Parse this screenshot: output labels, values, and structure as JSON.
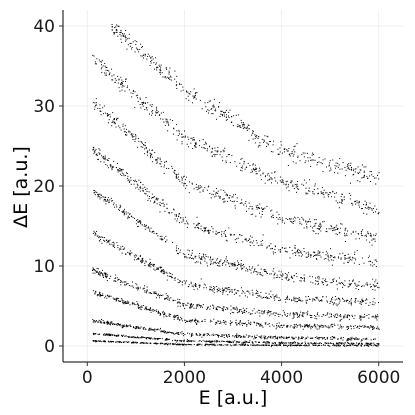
{
  "chart_data": {
    "type": "scatter",
    "title": "",
    "xlabel": "E [a.u.]",
    "ylabel": "ΔE [a.u.]",
    "xlim": [
      -500,
      6500
    ],
    "ylim": [
      -2,
      42
    ],
    "xticks": [
      0,
      2000,
      4000,
      6000
    ],
    "xtick_labels": [
      "0",
      "2000",
      "4000",
      "6000"
    ],
    "yticks": [
      0,
      10,
      20,
      30,
      40
    ],
    "ytick_labels": [
      "0",
      "10",
      "20",
      "30",
      "40"
    ],
    "grid": true,
    "legend": "none",
    "marker_color": "#000000",
    "model": "bands of ΔE falling as a/(E+b)",
    "series": [
      {
        "x": [
          100,
          2000,
          4000,
          6000
        ],
        "y": [
          0.7,
          0.25,
          0.15,
          0.1
        ],
        "spread": 0.08
      },
      {
        "x": [
          100,
          2000,
          4000,
          6000
        ],
        "y": [
          1.6,
          0.7,
          0.45,
          0.35
        ],
        "spread": 0.12
      },
      {
        "x": [
          100,
          2000,
          4000,
          6000
        ],
        "y": [
          3.2,
          1.5,
          1.1,
          0.9
        ],
        "spread": 0.2
      },
      {
        "x": [
          100,
          2000,
          4000,
          6000
        ],
        "y": [
          6.8,
          3.3,
          2.6,
          2.4
        ],
        "spread": 0.3
      },
      {
        "x": [
          100,
          2000,
          4000,
          6000
        ],
        "y": [
          9.5,
          5.2,
          4.0,
          3.7
        ],
        "spread": 0.4
      },
      {
        "x": [
          100,
          2000,
          4000,
          6000
        ],
        "y": [
          14.2,
          7.8,
          6.0,
          5.5
        ],
        "spread": 0.5
      },
      {
        "x": [
          100,
          2000,
          4000,
          6000
        ],
        "y": [
          19.5,
          11.5,
          8.8,
          7.5
        ],
        "spread": 0.6
      },
      {
        "x": [
          100,
          2000,
          4000,
          6000
        ],
        "y": [
          24.5,
          15.5,
          12.0,
          10.5
        ],
        "spread": 0.7
      },
      {
        "x": [
          100,
          2000,
          4000,
          6000
        ],
        "y": [
          30.5,
          20.5,
          16.0,
          13.5
        ],
        "spread": 0.8
      },
      {
        "x": [
          100,
          2000,
          4000,
          6000
        ],
        "y": [
          36.0,
          26.0,
          20.5,
          17.0
        ],
        "spread": 0.9
      },
      {
        "x": [
          500,
          2000,
          4000,
          6000
        ],
        "y": [
          40.0,
          32.0,
          24.5,
          21.0
        ],
        "spread": 1.0
      }
    ]
  }
}
